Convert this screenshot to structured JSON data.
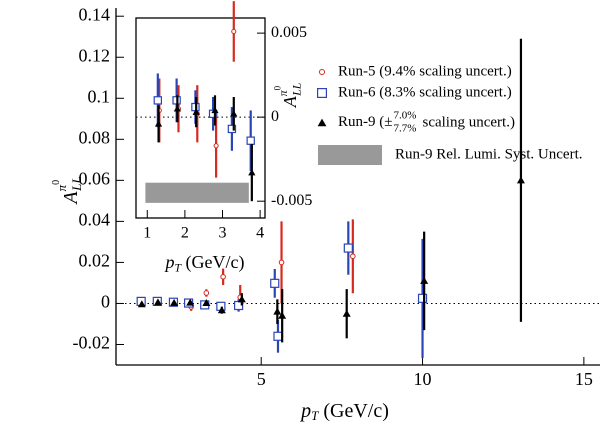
{
  "chart_data": [
    {
      "type": "scatter",
      "xlabel": {
        "base": "p",
        "sub": "T",
        "rest": " (GeV/c)"
      },
      "ylabel": {
        "base": "A",
        "sub": "LL",
        "sup": "π",
        "supsup": "0"
      },
      "xlim": [
        0.5,
        15.5
      ],
      "xticks": [
        5,
        10,
        15
      ],
      "ylim": [
        -0.03,
        0.144
      ],
      "yticks": [
        -0.02,
        0,
        0.02,
        0.04,
        0.06,
        0.08,
        0.1,
        0.12,
        0.14
      ],
      "ytick_side": "left",
      "zero_line": true,
      "series": [
        {
          "name": "Run-5 (9.4% scaling uncert.)",
          "color": "#d62a1e",
          "marker": "circle",
          "x": [
            1.32,
            1.83,
            2.33,
            2.83,
            3.3,
            3.82,
            4.35,
            5.63,
            7.84
          ],
          "values": [
            0.0004,
            0.0005,
            0.0002,
            -0.0017,
            0.0051,
            0.013,
            0.003,
            0.02,
            0.023
          ],
          "errors": [
            0.0019,
            0.0014,
            0.0017,
            0.0019,
            0.0018,
            0.004,
            0.006,
            0.02,
            0.018
          ]
        },
        {
          "name": "Run-6 (8.3% scaling uncert.)",
          "color": "#2b45b5",
          "marker": "square",
          "x": [
            1.28,
            1.78,
            2.28,
            2.75,
            3.25,
            3.75,
            4.3,
            5.42,
            5.52,
            7.7,
            10.0
          ],
          "values": [
            0.001,
            0.001,
            0.0006,
            0.0002,
            -0.0007,
            -0.0014,
            -0.001,
            0.0098,
            -0.016,
            0.027,
            0.0025
          ],
          "errors": [
            0.0016,
            0.0013,
            0.001,
            0.001,
            0.0013,
            0.0018,
            0.003,
            0.007,
            0.008,
            0.013,
            0.029
          ]
        },
        {
          "name_parts": [
            "Run-9 (±",
            "7.0%",
            "7.7%",
            "scaling uncert.)"
          ],
          "color": "#000000",
          "marker": "triangle",
          "x": [
            1.3,
            1.8,
            2.3,
            2.8,
            3.3,
            3.78,
            4.4,
            5.5,
            5.65,
            7.65,
            10.05,
            13.05
          ],
          "values": [
            -0.0004,
            0.0005,
            0.0003,
            0.0004,
            0.0002,
            -0.0033,
            0.002,
            -0.004,
            -0.006,
            -0.005,
            0.011,
            0.06
          ],
          "errors": [
            0.0011,
            0.0008,
            0.0009,
            0.0009,
            0.001,
            0.0017,
            0.003,
            0.006,
            0.013,
            0.012,
            0.024,
            0.069
          ]
        }
      ]
    },
    {
      "type": "scatter",
      "xlabel": {
        "base": "p",
        "sub": "T",
        "rest": " (GeV/c)"
      },
      "ylabel": {
        "base": "A",
        "sub": "LL",
        "sup": "π",
        "supsup": "0"
      },
      "xlim": [
        0.7,
        4.13
      ],
      "xticks": [
        1,
        2,
        3,
        4
      ],
      "ylim": [
        -0.006,
        0.0059
      ],
      "yticks": [
        -0.005,
        0,
        0.005
      ],
      "ytick_side": "right",
      "zero_line": true,
      "series": [
        {
          "color": "#d62a1e",
          "marker": "circle",
          "x": [
            1.32,
            1.83,
            2.33,
            2.83,
            3.3
          ],
          "values": [
            0.0004,
            0.0005,
            0.0002,
            -0.0017,
            0.0051
          ],
          "errors": [
            0.0019,
            0.0014,
            0.0017,
            0.0019,
            0.0018
          ]
        },
        {
          "color": "#2b45b5",
          "marker": "square",
          "x": [
            1.28,
            1.78,
            2.28,
            2.75,
            3.25,
            3.75
          ],
          "values": [
            0.001,
            0.001,
            0.0006,
            0.0002,
            -0.0007,
            -0.0014
          ],
          "errors": [
            0.0016,
            0.0013,
            0.001,
            0.001,
            0.0013,
            0.0018
          ]
        },
        {
          "color": "#000000",
          "marker": "triangle",
          "x": [
            1.3,
            1.8,
            2.3,
            2.8,
            3.3,
            3.78
          ],
          "values": [
            -0.0004,
            0.0005,
            0.0003,
            0.0004,
            0.0002,
            -0.0033
          ],
          "errors": [
            0.0011,
            0.0008,
            0.0009,
            0.0009,
            0.001,
            0.0017
          ]
        }
      ],
      "band": {
        "name": "Run-9 Rel. Lumi. Syst. Uncert.",
        "color": "#999999",
        "x": [
          0.95,
          3.7
        ],
        "low": -0.0051,
        "high": -0.0039
      }
    }
  ]
}
